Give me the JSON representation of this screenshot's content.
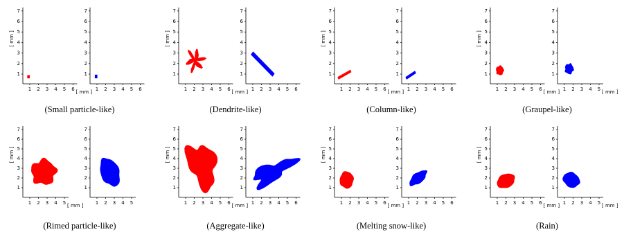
{
  "panels": [
    {
      "caption": "(Small particle-like)",
      "plots": [
        {
          "y_label": "[ mm ]",
          "x_label": "[ mm ]",
          "xticks": [
            1,
            2,
            3,
            4,
            5,
            6
          ],
          "yticks": [
            1,
            2,
            3,
            4,
            5,
            6,
            7
          ]
        },
        {
          "xticks": [
            1,
            2,
            3,
            4,
            5,
            6
          ],
          "yticks": [
            1,
            2,
            3,
            4,
            5,
            6,
            7
          ]
        }
      ]
    },
    {
      "caption": "(Dendrite-like)",
      "plots": [
        {
          "y_label": "[ mm ]",
          "x_label": "[ mm ]",
          "xticks": [
            1,
            2,
            3,
            4,
            5,
            6
          ],
          "yticks": [
            1,
            2,
            3,
            4,
            5,
            6,
            7
          ]
        },
        {
          "xticks": [
            1,
            2,
            3,
            4,
            5,
            6
          ],
          "yticks": [
            1,
            2,
            3,
            4,
            5,
            6,
            7
          ]
        }
      ]
    },
    {
      "caption": "(Column-like)",
      "plots": [
        {
          "y_label": "[ mm ]",
          "x_label": "[ mm ]",
          "xticks": [
            1,
            2,
            3,
            4,
            5,
            6
          ],
          "yticks": [
            1,
            2,
            3,
            4,
            5,
            6,
            7
          ]
        },
        {
          "xticks": [
            1,
            2,
            3,
            4,
            5,
            6
          ],
          "yticks": [
            1,
            2,
            3,
            4,
            5,
            6,
            7
          ]
        }
      ]
    },
    {
      "caption": "(Graupel-like)",
      "plots": [
        {
          "y_label": "[ mm ]",
          "x_label": "[ mm ]",
          "xticks": [
            1,
            2,
            3,
            4,
            5,
            6
          ],
          "yticks": [
            1,
            2,
            3,
            4,
            5,
            6,
            7
          ]
        },
        {
          "x_label": "[ mm ]",
          "xticks": [
            1,
            2,
            3,
            4,
            5
          ],
          "yticks": [
            1,
            2,
            3,
            4,
            5,
            6,
            7
          ]
        }
      ]
    },
    {
      "caption": "(Rimed particle-like)",
      "plots": [
        {
          "y_label": "[ mm ]",
          "x_label": "[ mm ]",
          "xticks": [
            1,
            2,
            3,
            4,
            5
          ],
          "yticks": [
            1,
            2,
            3,
            4,
            5,
            6,
            7
          ]
        },
        {
          "xticks": [
            1,
            2,
            3,
            4,
            5
          ],
          "yticks": [
            1,
            2,
            3,
            4,
            5,
            6,
            7
          ]
        }
      ]
    },
    {
      "caption": "(Aggregate-like)",
      "plots": [
        {
          "y_label": "[ mm ]",
          "x_label": "[ mm ]",
          "xticks": [
            1,
            2,
            3,
            4,
            5,
            6
          ],
          "yticks": [
            1,
            2,
            3,
            4,
            5,
            6,
            7
          ]
        },
        {
          "xticks": [
            1,
            2,
            3,
            4,
            5,
            6
          ],
          "yticks": [
            1,
            2,
            3,
            4,
            5,
            6,
            7
          ]
        }
      ]
    },
    {
      "caption": "(Melting snow-like)",
      "plots": [
        {
          "y_label": "[ mm ]",
          "x_label": "[ mm ]",
          "xticks": [
            1,
            2,
            3,
            4,
            5,
            6
          ],
          "yticks": [
            1,
            2,
            3,
            4,
            5,
            6,
            7
          ]
        },
        {
          "xticks": [
            1,
            2,
            3,
            4,
            5,
            6
          ],
          "yticks": [
            1,
            2,
            3,
            4,
            5,
            6,
            7
          ]
        }
      ]
    },
    {
      "caption": "(Rain)",
      "plots": [
        {
          "y_label": "[ mm ]",
          "x_label": "[ mm ]",
          "xticks": [
            1,
            2,
            3,
            4,
            5,
            6
          ],
          "yticks": [
            1,
            2,
            3,
            4,
            5,
            6,
            7
          ]
        },
        {
          "x_label": "[ mm ]",
          "xticks": [
            1,
            2,
            3,
            4,
            5
          ],
          "yticks": [
            1,
            2,
            3,
            4,
            5,
            6,
            7
          ]
        }
      ]
    }
  ]
}
